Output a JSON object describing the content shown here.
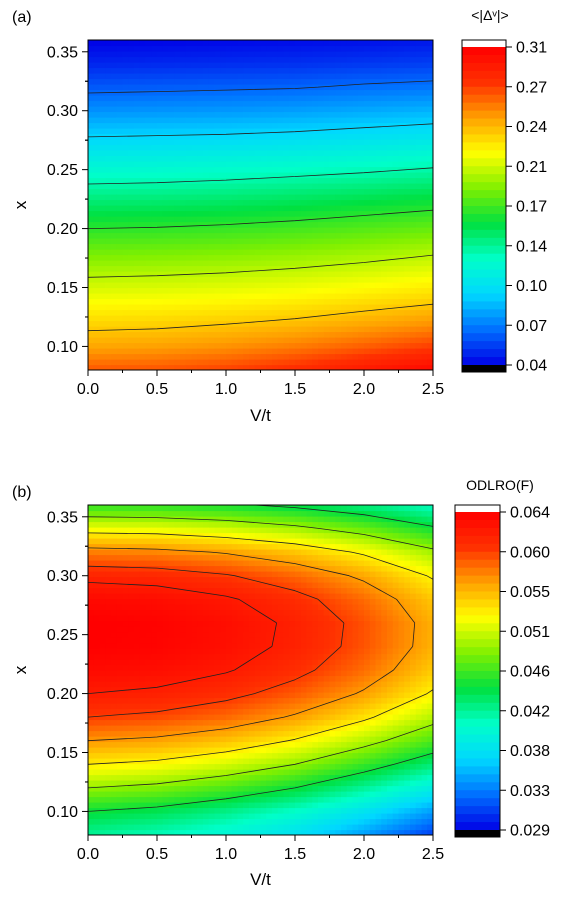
{
  "chart_data": [
    {
      "panel_label": "(a)",
      "type": "heatmap",
      "xlabel": "V/t",
      "ylabel": "x",
      "xlim": [
        0.0,
        2.5
      ],
      "ylim": [
        0.08,
        0.36
      ],
      "xticks": [
        "0.0",
        "0.5",
        "1.0",
        "1.5",
        "2.0",
        "2.5"
      ],
      "yticks": [
        "0.10",
        "0.15",
        "0.20",
        "0.25",
        "0.30",
        "0.35"
      ],
      "colorbar_title": "<|Δᵛ|>",
      "colorbar_ticks": [
        "0.31",
        "0.27",
        "0.24",
        "0.21",
        "0.17",
        "0.14",
        "0.10",
        "0.07",
        "0.04"
      ],
      "zlim": [
        0.04,
        0.31
      ],
      "colormap": [
        "#000000",
        "#0000e6",
        "#0070ff",
        "#00d8ff",
        "#00ffc8",
        "#00e040",
        "#80f000",
        "#ffff00",
        "#ffa000",
        "#ff3000",
        "#ff0000",
        "#ffffff"
      ],
      "x": [
        0.0,
        0.5,
        1.0,
        1.5,
        2.0,
        2.5
      ],
      "y": [
        0.08,
        0.1,
        0.12,
        0.14,
        0.16,
        0.18,
        0.2,
        0.22,
        0.24,
        0.26,
        0.28,
        0.3,
        0.32,
        0.34,
        0.36
      ],
      "z": [
        [
          0.27,
          0.271,
          0.276,
          0.284,
          0.295,
          0.306
        ],
        [
          0.248,
          0.25,
          0.254,
          0.26,
          0.268,
          0.277
        ],
        [
          0.233,
          0.234,
          0.237,
          0.241,
          0.247,
          0.253
        ],
        [
          0.218,
          0.219,
          0.221,
          0.224,
          0.229,
          0.234
        ],
        [
          0.203,
          0.204,
          0.206,
          0.209,
          0.213,
          0.218
        ],
        [
          0.187,
          0.188,
          0.19,
          0.193,
          0.197,
          0.202
        ],
        [
          0.17,
          0.171,
          0.173,
          0.176,
          0.18,
          0.184
        ],
        [
          0.152,
          0.153,
          0.155,
          0.158,
          0.162,
          0.166
        ],
        [
          0.134,
          0.135,
          0.137,
          0.14,
          0.143,
          0.147
        ],
        [
          0.116,
          0.117,
          0.119,
          0.121,
          0.124,
          0.128
        ],
        [
          0.098,
          0.099,
          0.1,
          0.102,
          0.105,
          0.108
        ],
        [
          0.08,
          0.081,
          0.082,
          0.084,
          0.087,
          0.09
        ],
        [
          0.064,
          0.065,
          0.066,
          0.067,
          0.07,
          0.072
        ],
        [
          0.05,
          0.051,
          0.052,
          0.053,
          0.055,
          0.057
        ],
        [
          0.04,
          0.041,
          0.042,
          0.043,
          0.044,
          0.046
        ]
      ],
      "contour_levels": [
        0.068,
        0.1,
        0.136,
        0.17,
        0.204,
        0.238
      ]
    },
    {
      "panel_label": "(b)",
      "type": "heatmap",
      "xlabel": "V/t",
      "ylabel": "x",
      "xlim": [
        0.0,
        2.5
      ],
      "ylim": [
        0.08,
        0.36
      ],
      "xticks": [
        "0.0",
        "0.5",
        "1.0",
        "1.5",
        "2.0",
        "2.5"
      ],
      "yticks": [
        "0.10",
        "0.15",
        "0.20",
        "0.25",
        "0.30",
        "0.35"
      ],
      "colorbar_title": "ODLRO(F)",
      "colorbar_ticks": [
        "0.064",
        "0.060",
        "0.055",
        "0.051",
        "0.046",
        "0.042",
        "0.038",
        "0.033",
        "0.029"
      ],
      "zlim": [
        0.029,
        0.064
      ],
      "colormap": [
        "#000000",
        "#0000e6",
        "#0070ff",
        "#00d8ff",
        "#00ffc8",
        "#00e040",
        "#80f000",
        "#ffff00",
        "#ffa000",
        "#ff3000",
        "#ff0000",
        "#ffffff"
      ],
      "x": [
        0.0,
        0.5,
        1.0,
        1.5,
        2.0,
        2.5
      ],
      "y": [
        0.08,
        0.1,
        0.12,
        0.14,
        0.16,
        0.18,
        0.2,
        0.22,
        0.24,
        0.26,
        0.28,
        0.3,
        0.32,
        0.34,
        0.36
      ],
      "z": [
        [
          0.042,
          0.041,
          0.0395,
          0.0375,
          0.0345,
          0.031
        ],
        [
          0.0448,
          0.044,
          0.0425,
          0.0405,
          0.0378,
          0.0345
        ],
        [
          0.049,
          0.0483,
          0.0468,
          0.0448,
          0.042,
          0.0388
        ],
        [
          0.053,
          0.0524,
          0.051,
          0.049,
          0.0462,
          0.043
        ],
        [
          0.0565,
          0.056,
          0.0548,
          0.0528,
          0.05,
          0.0468
        ],
        [
          0.0597,
          0.0592,
          0.0581,
          0.0562,
          0.0535,
          0.05
        ],
        [
          0.0618,
          0.0614,
          0.0604,
          0.0587,
          0.0562,
          0.0527
        ],
        [
          0.0632,
          0.0629,
          0.062,
          0.0604,
          0.058,
          0.0545
        ],
        [
          0.064,
          0.0637,
          0.0628,
          0.0613,
          0.0589,
          0.0555
        ],
        [
          0.0641,
          0.0638,
          0.0629,
          0.0614,
          0.059,
          0.0556
        ],
        [
          0.0633,
          0.063,
          0.0621,
          0.0605,
          0.0581,
          0.0547
        ],
        [
          0.0612,
          0.0609,
          0.0599,
          0.0583,
          0.056,
          0.0527
        ],
        [
          0.0575,
          0.0572,
          0.0563,
          0.0548,
          0.0526,
          0.0496
        ],
        [
          0.052,
          0.0518,
          0.051,
          0.0497,
          0.0478,
          0.0452
        ],
        [
          0.046,
          0.0458,
          0.0452,
          0.0442,
          0.0427,
          0.0408
        ]
      ],
      "contour_levels": [
        0.0448,
        0.049,
        0.053,
        0.0565,
        0.0597,
        0.0618
      ]
    }
  ]
}
